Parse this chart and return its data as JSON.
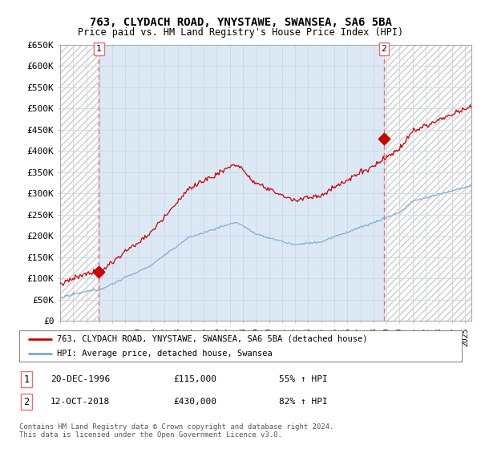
{
  "title1": "763, CLYDACH ROAD, YNYSTAWE, SWANSEA, SA6 5BA",
  "title2": "Price paid vs. HM Land Registry's House Price Index (HPI)",
  "ylabel_ticks": [
    "£0",
    "£50K",
    "£100K",
    "£150K",
    "£200K",
    "£250K",
    "£300K",
    "£350K",
    "£400K",
    "£450K",
    "£500K",
    "£550K",
    "£600K",
    "£650K"
  ],
  "ytick_vals": [
    0,
    50000,
    100000,
    150000,
    200000,
    250000,
    300000,
    350000,
    400000,
    450000,
    500000,
    550000,
    600000,
    650000
  ],
  "sale1_date": 1996.97,
  "sale1_price": 115000,
  "sale2_date": 2018.79,
  "sale2_price": 430000,
  "legend_line1": "763, CLYDACH ROAD, YNYSTAWE, SWANSEA, SA6 5BA (detached house)",
  "legend_line2": "HPI: Average price, detached house, Swansea",
  "ann1_label": "1",
  "ann1_date": "20-DEC-1996",
  "ann1_price": "£115,000",
  "ann1_hpi": "55% ↑ HPI",
  "ann2_label": "2",
  "ann2_date": "12-OCT-2018",
  "ann2_price": "£430,000",
  "ann2_hpi": "82% ↑ HPI",
  "footer": "Contains HM Land Registry data © Crown copyright and database right 2024.\nThis data is licensed under the Open Government Licence v3.0.",
  "bg_color": "#dce9f5",
  "hatch_color": "#bbbbbb",
  "red_line_color": "#cc0000",
  "blue_line_color": "#7ba7d0",
  "sale_dot_color": "#cc0000",
  "vline_color": "#e87070",
  "grid_color": "#c8d8e8",
  "xmin": 1994.0,
  "xmax": 2025.5,
  "ymin": 0,
  "ymax": 650000
}
